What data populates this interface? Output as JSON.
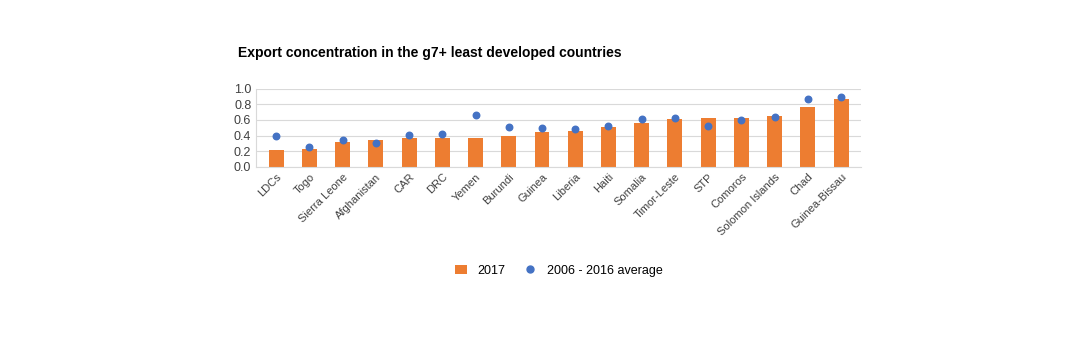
{
  "chart_data": {
    "type": "bar",
    "title": "Export concentration in the g7+ least developed countries",
    "categories": [
      "LDCs",
      "Togo",
      "Sierra Leone",
      "Afghanistan",
      "CAR",
      "DRC",
      "Yemen",
      "Burundi",
      "Guinea",
      "Liberia",
      "Haiti",
      "Somalia",
      "Timor-Leste",
      "STP",
      "Comoros",
      "Solomon Islands",
      "Chad",
      "Guinea-Bissau"
    ],
    "series": [
      {
        "name": "2017",
        "type": "bar",
        "color": "#ED7D31",
        "values": [
          0.22,
          0.23,
          0.32,
          0.35,
          0.37,
          0.37,
          0.37,
          0.39,
          0.44,
          0.46,
          0.51,
          0.56,
          0.61,
          0.62,
          0.62,
          0.65,
          0.77,
          0.87
        ]
      },
      {
        "name": "2006 - 2016 average",
        "type": "scatter",
        "color": "#4472C4",
        "marker": "o",
        "values": [
          0.4,
          0.25,
          0.34,
          0.31,
          0.41,
          0.42,
          0.66,
          0.51,
          0.5,
          0.49,
          0.52,
          0.61,
          0.63,
          0.52,
          0.6,
          0.64,
          0.87,
          0.89
        ]
      }
    ],
    "ylim": [
      0,
      1.0
    ],
    "yticks": [
      {
        "value": 0,
        "label": "0.0"
      },
      0.2,
      0.4,
      0.6,
      0.8,
      {
        "value": 1.0,
        "label": "1.0"
      }
    ],
    "grid": true,
    "legend": "lower center"
  }
}
